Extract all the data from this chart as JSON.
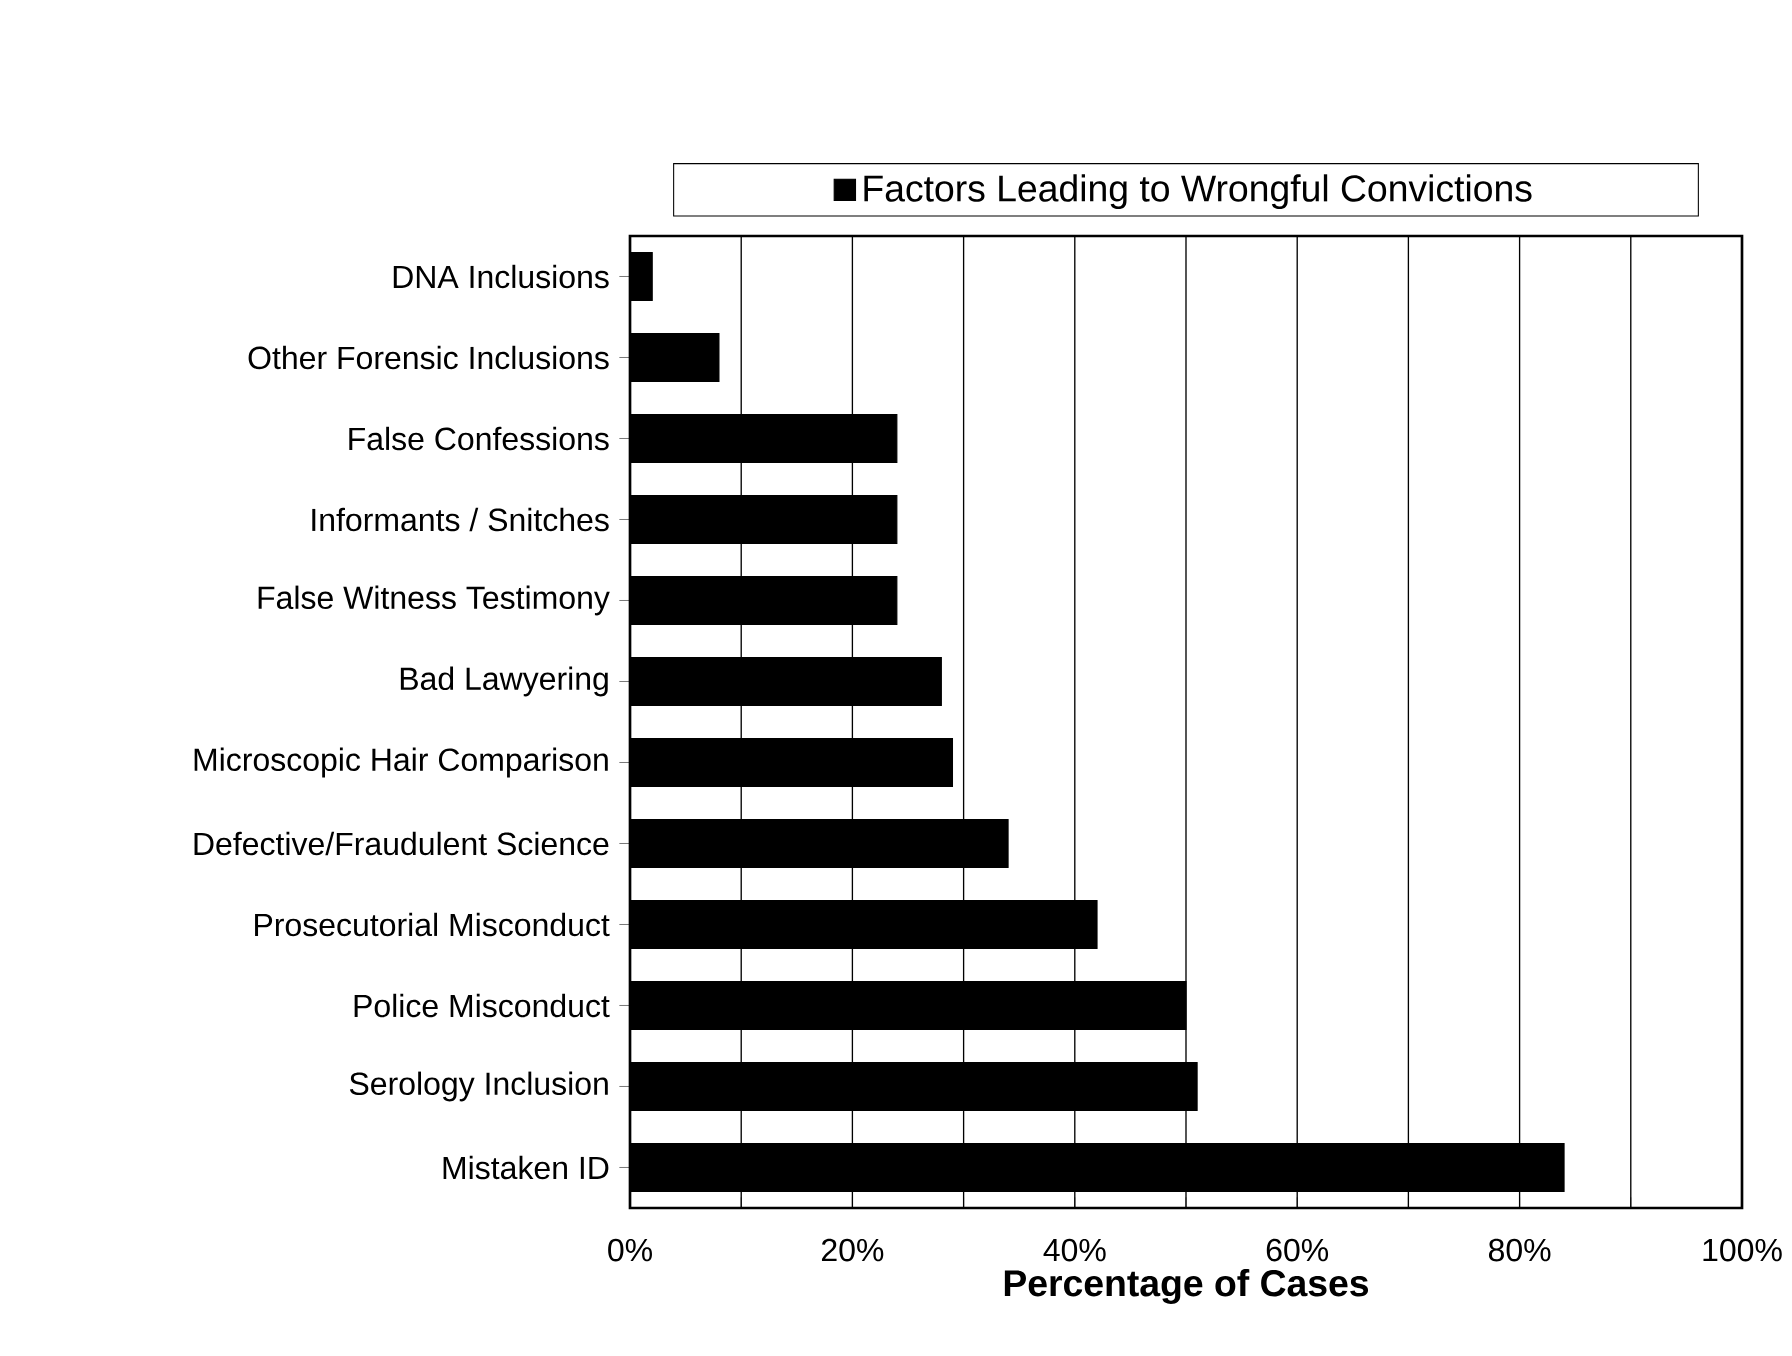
{
  "chart_data": {
    "type": "bar",
    "orientation": "horizontal",
    "xlabel": "Percentage of Cases",
    "categories": [
      "DNA Inclusions",
      "Other Forensic Inclusions",
      "False Confessions",
      "Informants / Snitches",
      "False Witness Testimony",
      "Bad Lawyering",
      "Microscopic Hair Comparison",
      "Defective/Fraudulent Science",
      "Prosecutorial Misconduct",
      "Police Misconduct",
      "Serology Inclusion",
      "Mistaken ID"
    ],
    "series": [
      {
        "name": "Factors Leading to Wrongful Convictions",
        "color": "#000000",
        "values": [
          2,
          8,
          24,
          24,
          24,
          28,
          29,
          34,
          42,
          50,
          51,
          84
        ]
      }
    ],
    "xlim": [
      0,
      100
    ],
    "xticks": [
      {
        "value": 0,
        "label": "0%"
      },
      {
        "value": 10,
        "label": null
      },
      {
        "value": 20,
        "label": "20%"
      },
      {
        "value": 30,
        "label": null
      },
      {
        "value": 40,
        "label": "40%"
      },
      {
        "value": 50,
        "label": null
      },
      {
        "value": 60,
        "label": "60%"
      },
      {
        "value": 70,
        "label": null
      },
      {
        "value": 80,
        "label": "80%"
      },
      {
        "value": 90,
        "label": null
      },
      {
        "value": 100,
        "label": "100%"
      }
    ],
    "grid": "x",
    "legend": "top"
  }
}
